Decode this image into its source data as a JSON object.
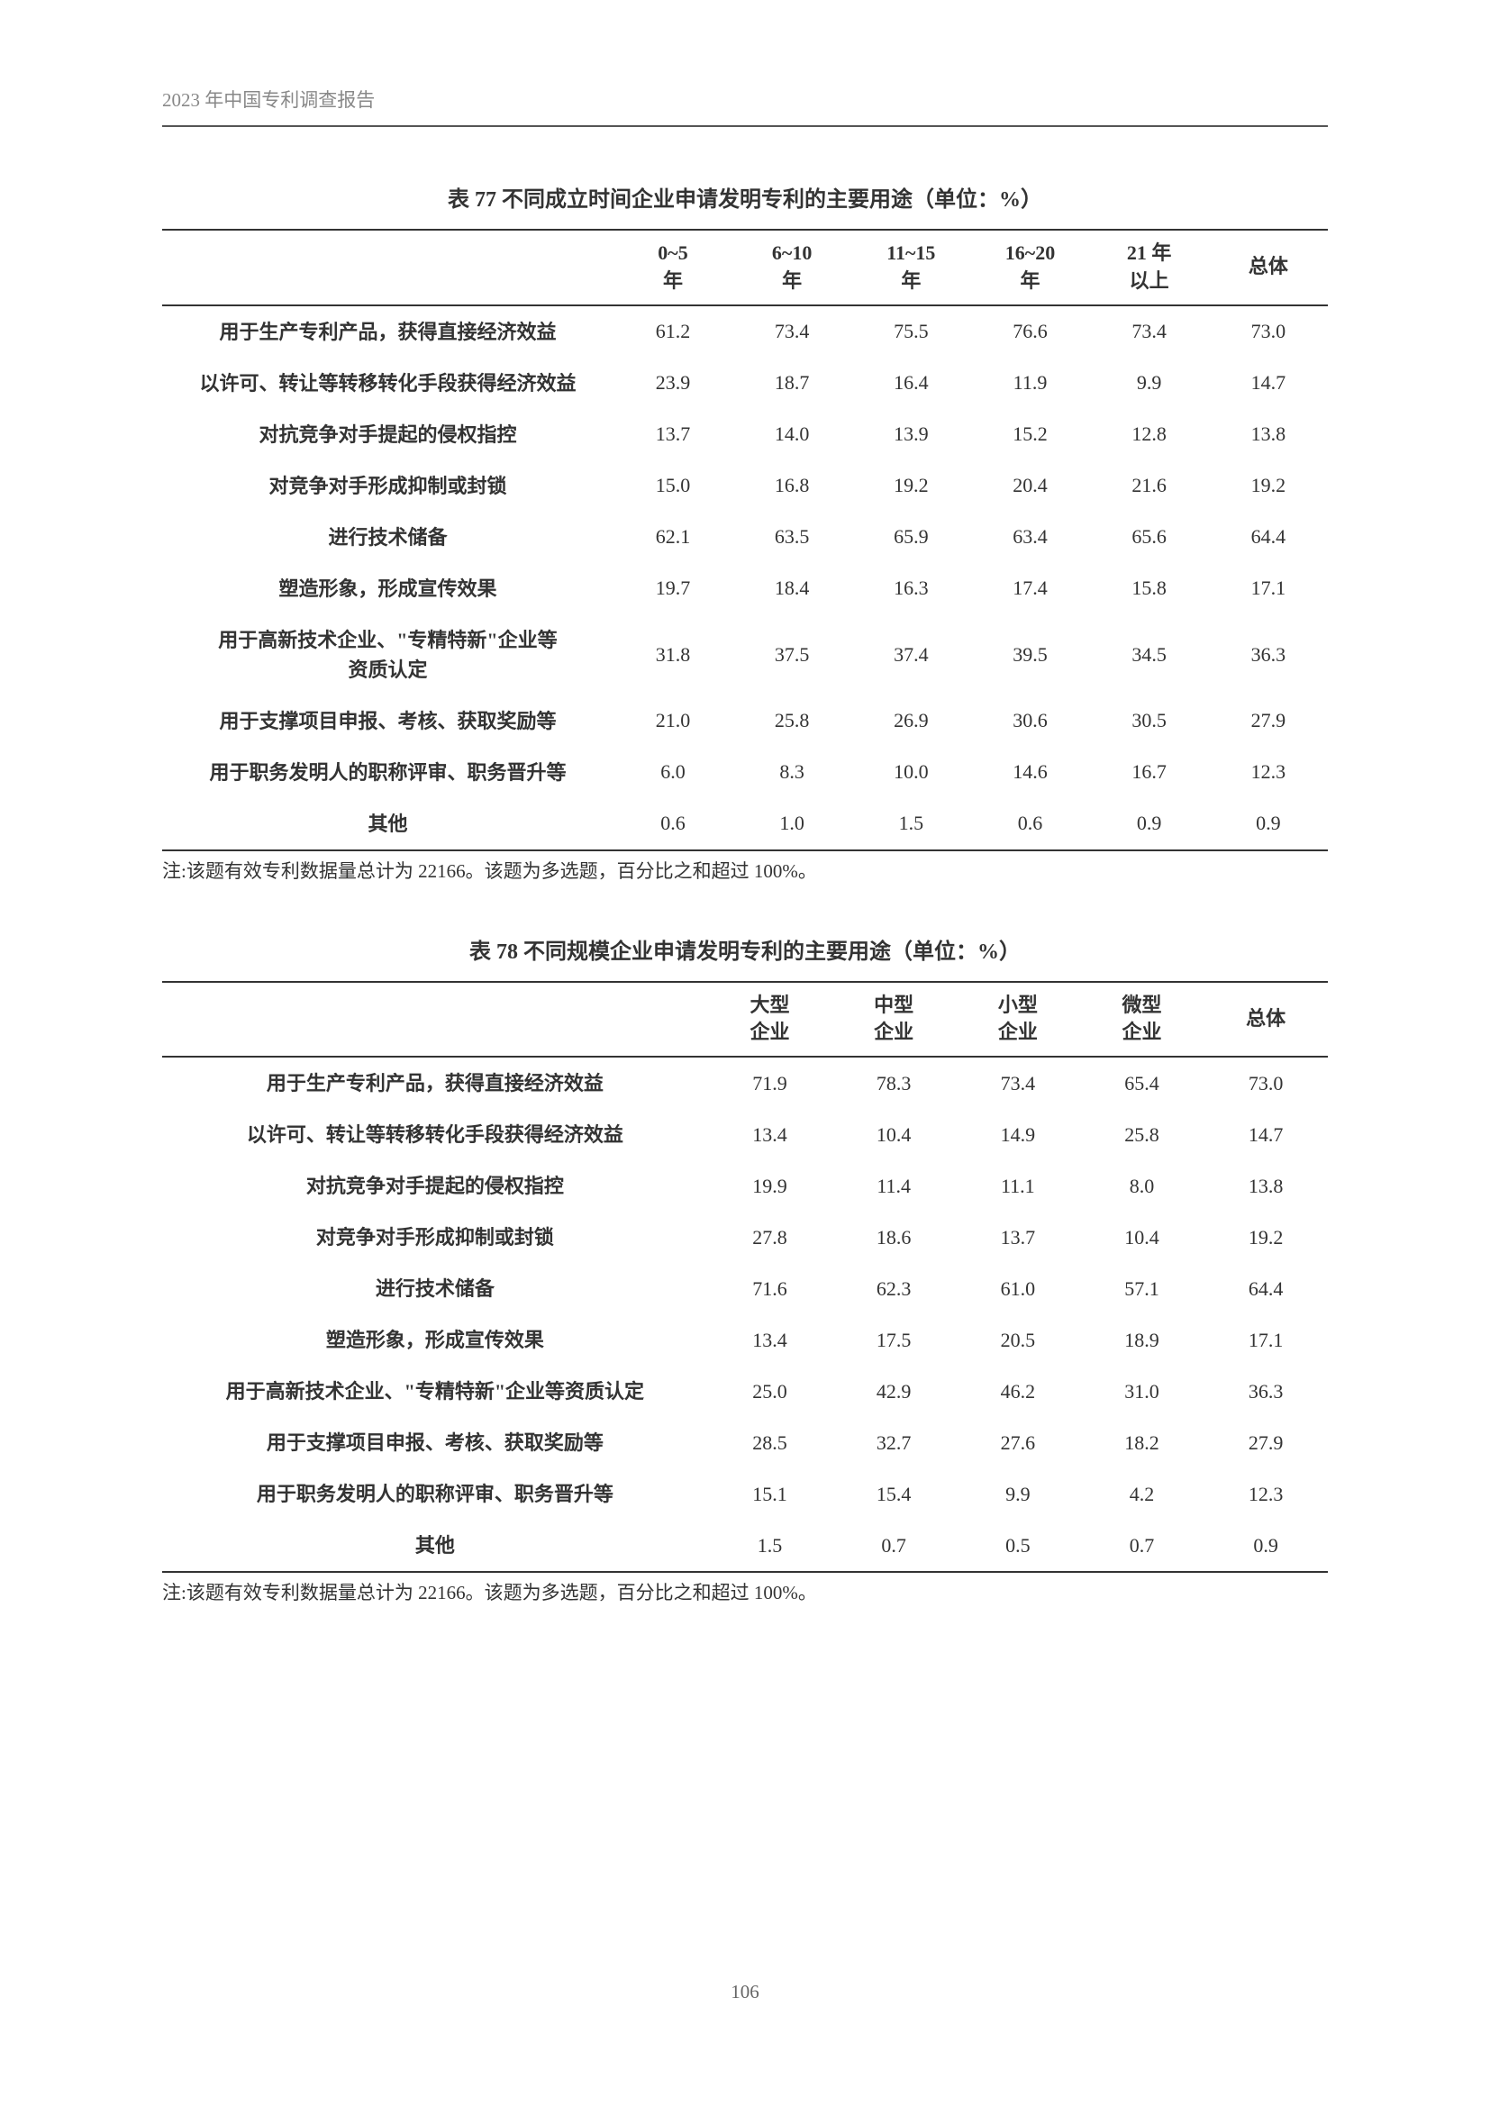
{
  "header": "2023 年中国专利调查报告",
  "pageNumber": "106",
  "table77": {
    "title": "表 77  不同成立时间企业申请发明专利的主要用途（单位：%）",
    "columns": [
      "",
      "0~5\n年",
      "6~10\n年",
      "11~15\n年",
      "16~20\n年",
      "21 年\n以上",
      "总体"
    ],
    "rows": [
      [
        "用于生产专利产品，获得直接经济效益",
        "61.2",
        "73.4",
        "75.5",
        "76.6",
        "73.4",
        "73.0"
      ],
      [
        "以许可、转让等转移转化手段获得经济效益",
        "23.9",
        "18.7",
        "16.4",
        "11.9",
        "9.9",
        "14.7"
      ],
      [
        "对抗竞争对手提起的侵权指控",
        "13.7",
        "14.0",
        "13.9",
        "15.2",
        "12.8",
        "13.8"
      ],
      [
        "对竞争对手形成抑制或封锁",
        "15.0",
        "16.8",
        "19.2",
        "20.4",
        "21.6",
        "19.2"
      ],
      [
        "进行技术储备",
        "62.1",
        "63.5",
        "65.9",
        "63.4",
        "65.6",
        "64.4"
      ],
      [
        "塑造形象，形成宣传效果",
        "19.7",
        "18.4",
        "16.3",
        "17.4",
        "15.8",
        "17.1"
      ],
      [
        "用于高新技术企业、\"专精特新\"企业等\n资质认定",
        "31.8",
        "37.5",
        "37.4",
        "39.5",
        "34.5",
        "36.3"
      ],
      [
        "用于支撑项目申报、考核、获取奖励等",
        "21.0",
        "25.8",
        "26.9",
        "30.6",
        "30.5",
        "27.9"
      ],
      [
        "用于职务发明人的职称评审、职务晋升等",
        "6.0",
        "8.3",
        "10.0",
        "14.6",
        "16.7",
        "12.3"
      ],
      [
        "其他",
        "0.6",
        "1.0",
        "1.5",
        "0.6",
        "0.9",
        "0.9"
      ]
    ],
    "note": "注:该题有效专利数据量总计为 22166。该题为多选题，百分比之和超过 100%。"
  },
  "table78": {
    "title": "表 78  不同规模企业申请发明专利的主要用途（单位：%）",
    "columns": [
      "",
      "大型\n企业",
      "中型\n企业",
      "小型\n企业",
      "微型\n企业",
      "总体"
    ],
    "rows": [
      [
        "用于生产专利产品，获得直接经济效益",
        "71.9",
        "78.3",
        "73.4",
        "65.4",
        "73.0"
      ],
      [
        "以许可、转让等转移转化手段获得经济效益",
        "13.4",
        "10.4",
        "14.9",
        "25.8",
        "14.7"
      ],
      [
        "对抗竞争对手提起的侵权指控",
        "19.9",
        "11.4",
        "11.1",
        "8.0",
        "13.8"
      ],
      [
        "对竞争对手形成抑制或封锁",
        "27.8",
        "18.6",
        "13.7",
        "10.4",
        "19.2"
      ],
      [
        "进行技术储备",
        "71.6",
        "62.3",
        "61.0",
        "57.1",
        "64.4"
      ],
      [
        "塑造形象，形成宣传效果",
        "13.4",
        "17.5",
        "20.5",
        "18.9",
        "17.1"
      ],
      [
        "用于高新技术企业、\"专精特新\"企业等资质认定",
        "25.0",
        "42.9",
        "46.2",
        "31.0",
        "36.3"
      ],
      [
        "用于支撑项目申报、考核、获取奖励等",
        "28.5",
        "32.7",
        "27.6",
        "18.2",
        "27.9"
      ],
      [
        "用于职务发明人的职称评审、职务晋升等",
        "15.1",
        "15.4",
        "9.9",
        "4.2",
        "12.3"
      ],
      [
        "其他",
        "1.5",
        "0.7",
        "0.5",
        "0.7",
        "0.9"
      ]
    ],
    "note": "注:该题有效专利数据量总计为 22166。该题为多选题，百分比之和超过 100%。"
  }
}
